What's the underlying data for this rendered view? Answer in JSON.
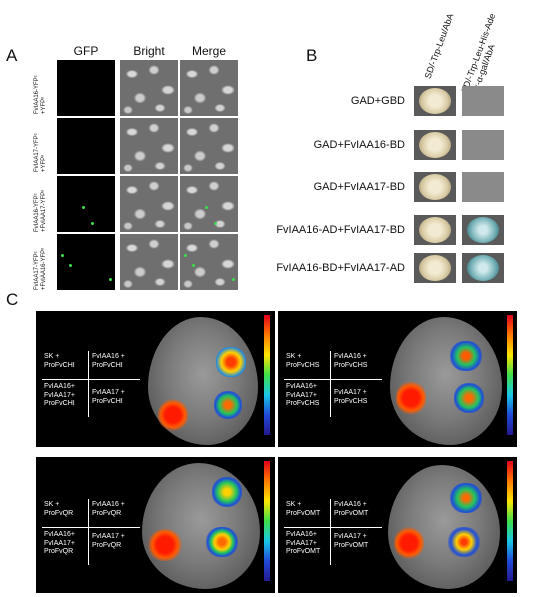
{
  "panelA": {
    "letter": "A",
    "columns": [
      "GFP",
      "Bright",
      "Merge"
    ],
    "rows": [
      {
        "label": "FvIAA16-YFPᶜ\n+YFPⁿ"
      },
      {
        "label": "FvIAA17-YFPᶜ\n+YFPⁿ"
      },
      {
        "label": "FvIAA16-YFPᶜ\n+FvIAA17-YFPⁿ"
      },
      {
        "label": "FvIAA17-YFPᶜ\n+FvIAA16-YFPⁿ"
      }
    ]
  },
  "panelB": {
    "letter": "B",
    "col1": "SD/-Trp-Leu/AbA",
    "col2": "SD/-Trp-Leu-His-Ade\n+ x-α-gal/AbA",
    "rows": [
      {
        "label": "GAD+GBD",
        "growth1": true,
        "growth2": false
      },
      {
        "label": "GAD+FvIAA16-BD",
        "growth1": true,
        "growth2": false
      },
      {
        "label": "GAD+FvIAA17-BD",
        "growth1": true,
        "growth2": false
      },
      {
        "label": "FvIAA16-AD+FvIAA17-BD",
        "growth1": true,
        "growth2": true
      },
      {
        "label": "FvIAA16-BD+FvIAA17-AD",
        "growth1": true,
        "growth2": true
      }
    ]
  },
  "panelC": {
    "letter": "C",
    "panels": [
      {
        "q1": "SK +\nProFvCHI",
        "q2": "FvIAA16 +\nProFvCHI",
        "q3": "FvIAA16+\nFvIAA17+\nProFvCHI",
        "q4": "FvIAA17 +\nProFvCHI"
      },
      {
        "q1": "SK +\nProFvCHS",
        "q2": "FvIAA16 +\nProFvCHS",
        "q3": "FvIAA16+\nFvIAA17+\nProFvCHS",
        "q4": "FvIAA17 +\nProFvCHS"
      },
      {
        "q1": "SK +\nProFvQR",
        "q2": "FvIAA16 +\nProFvQR",
        "q3": "FvIAA16+\nFvIAA17+\nProFvQR",
        "q4": "FvIAA17 +\nProFvQR"
      },
      {
        "q1": "SK +\nProFvOMT",
        "q2": "FvIAA16 +\nProFvOMT",
        "q3": "FvIAA16+\nFvIAA17+\nProFvOMT",
        "q4": "FvIAA17 +\nProFvOMT"
      }
    ]
  }
}
